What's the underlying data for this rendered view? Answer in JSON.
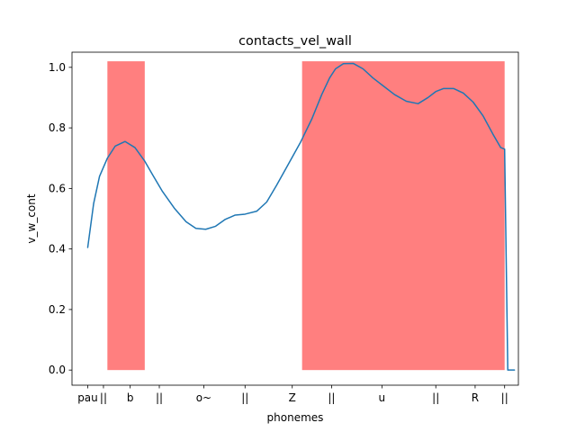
{
  "chart_data": {
    "type": "line",
    "title": "contacts_vel_wall",
    "xlabel": "phonemes",
    "ylabel": "v_w_cont",
    "xlim": [
      -0.4,
      10.95
    ],
    "ylim": [
      -0.05,
      1.05
    ],
    "yticks": [
      0.0,
      0.2,
      0.4,
      0.6,
      0.8,
      1.0
    ],
    "ytick_labels": [
      "0.0",
      "0.2",
      "0.4",
      "0.6",
      "0.8",
      "1.0"
    ],
    "xticks": [
      {
        "x": 0.0,
        "label": "pau"
      },
      {
        "x": 0.4,
        "label": "||"
      },
      {
        "x": 1.08,
        "label": "b"
      },
      {
        "x": 1.82,
        "label": "||"
      },
      {
        "x": 2.95,
        "label": "o~"
      },
      {
        "x": 4.0,
        "label": "||"
      },
      {
        "x": 5.2,
        "label": "Z"
      },
      {
        "x": 6.2,
        "label": "||"
      },
      {
        "x": 7.48,
        "label": "u"
      },
      {
        "x": 8.85,
        "label": "||"
      },
      {
        "x": 9.85,
        "label": "R"
      },
      {
        "x": 10.6,
        "label": "||"
      }
    ],
    "highlight_color": "#ff7f7f",
    "highlight_regions": [
      {
        "x0": 0.5,
        "x1": 1.45,
        "y0": 0.0,
        "y1": 1.02
      },
      {
        "x0": 5.45,
        "x1": 10.6,
        "y0": 0.0,
        "y1": 1.02
      }
    ],
    "series": [
      {
        "color": "#1f77b4",
        "x": [
          0.0,
          0.15,
          0.3,
          0.5,
          0.7,
          0.95,
          1.2,
          1.45,
          1.65,
          1.9,
          2.2,
          2.5,
          2.75,
          3.0,
          3.25,
          3.5,
          3.75,
          4.0,
          4.3,
          4.55,
          4.8,
          5.1,
          5.4,
          5.7,
          5.95,
          6.15,
          6.3,
          6.5,
          6.75,
          7.0,
          7.25,
          7.5,
          7.8,
          8.1,
          8.4,
          8.65,
          8.85,
          9.05,
          9.3,
          9.55,
          9.8,
          10.05,
          10.3,
          10.5,
          10.6,
          10.68,
          10.85
        ],
        "y": [
          0.405,
          0.55,
          0.64,
          0.7,
          0.74,
          0.755,
          0.735,
          0.69,
          0.645,
          0.59,
          0.535,
          0.49,
          0.468,
          0.465,
          0.475,
          0.498,
          0.512,
          0.515,
          0.525,
          0.555,
          0.61,
          0.68,
          0.75,
          0.83,
          0.91,
          0.965,
          0.995,
          1.012,
          1.013,
          0.995,
          0.965,
          0.94,
          0.91,
          0.888,
          0.88,
          0.9,
          0.92,
          0.93,
          0.93,
          0.915,
          0.885,
          0.84,
          0.78,
          0.735,
          0.73,
          0.0,
          0.0
        ]
      }
    ]
  }
}
